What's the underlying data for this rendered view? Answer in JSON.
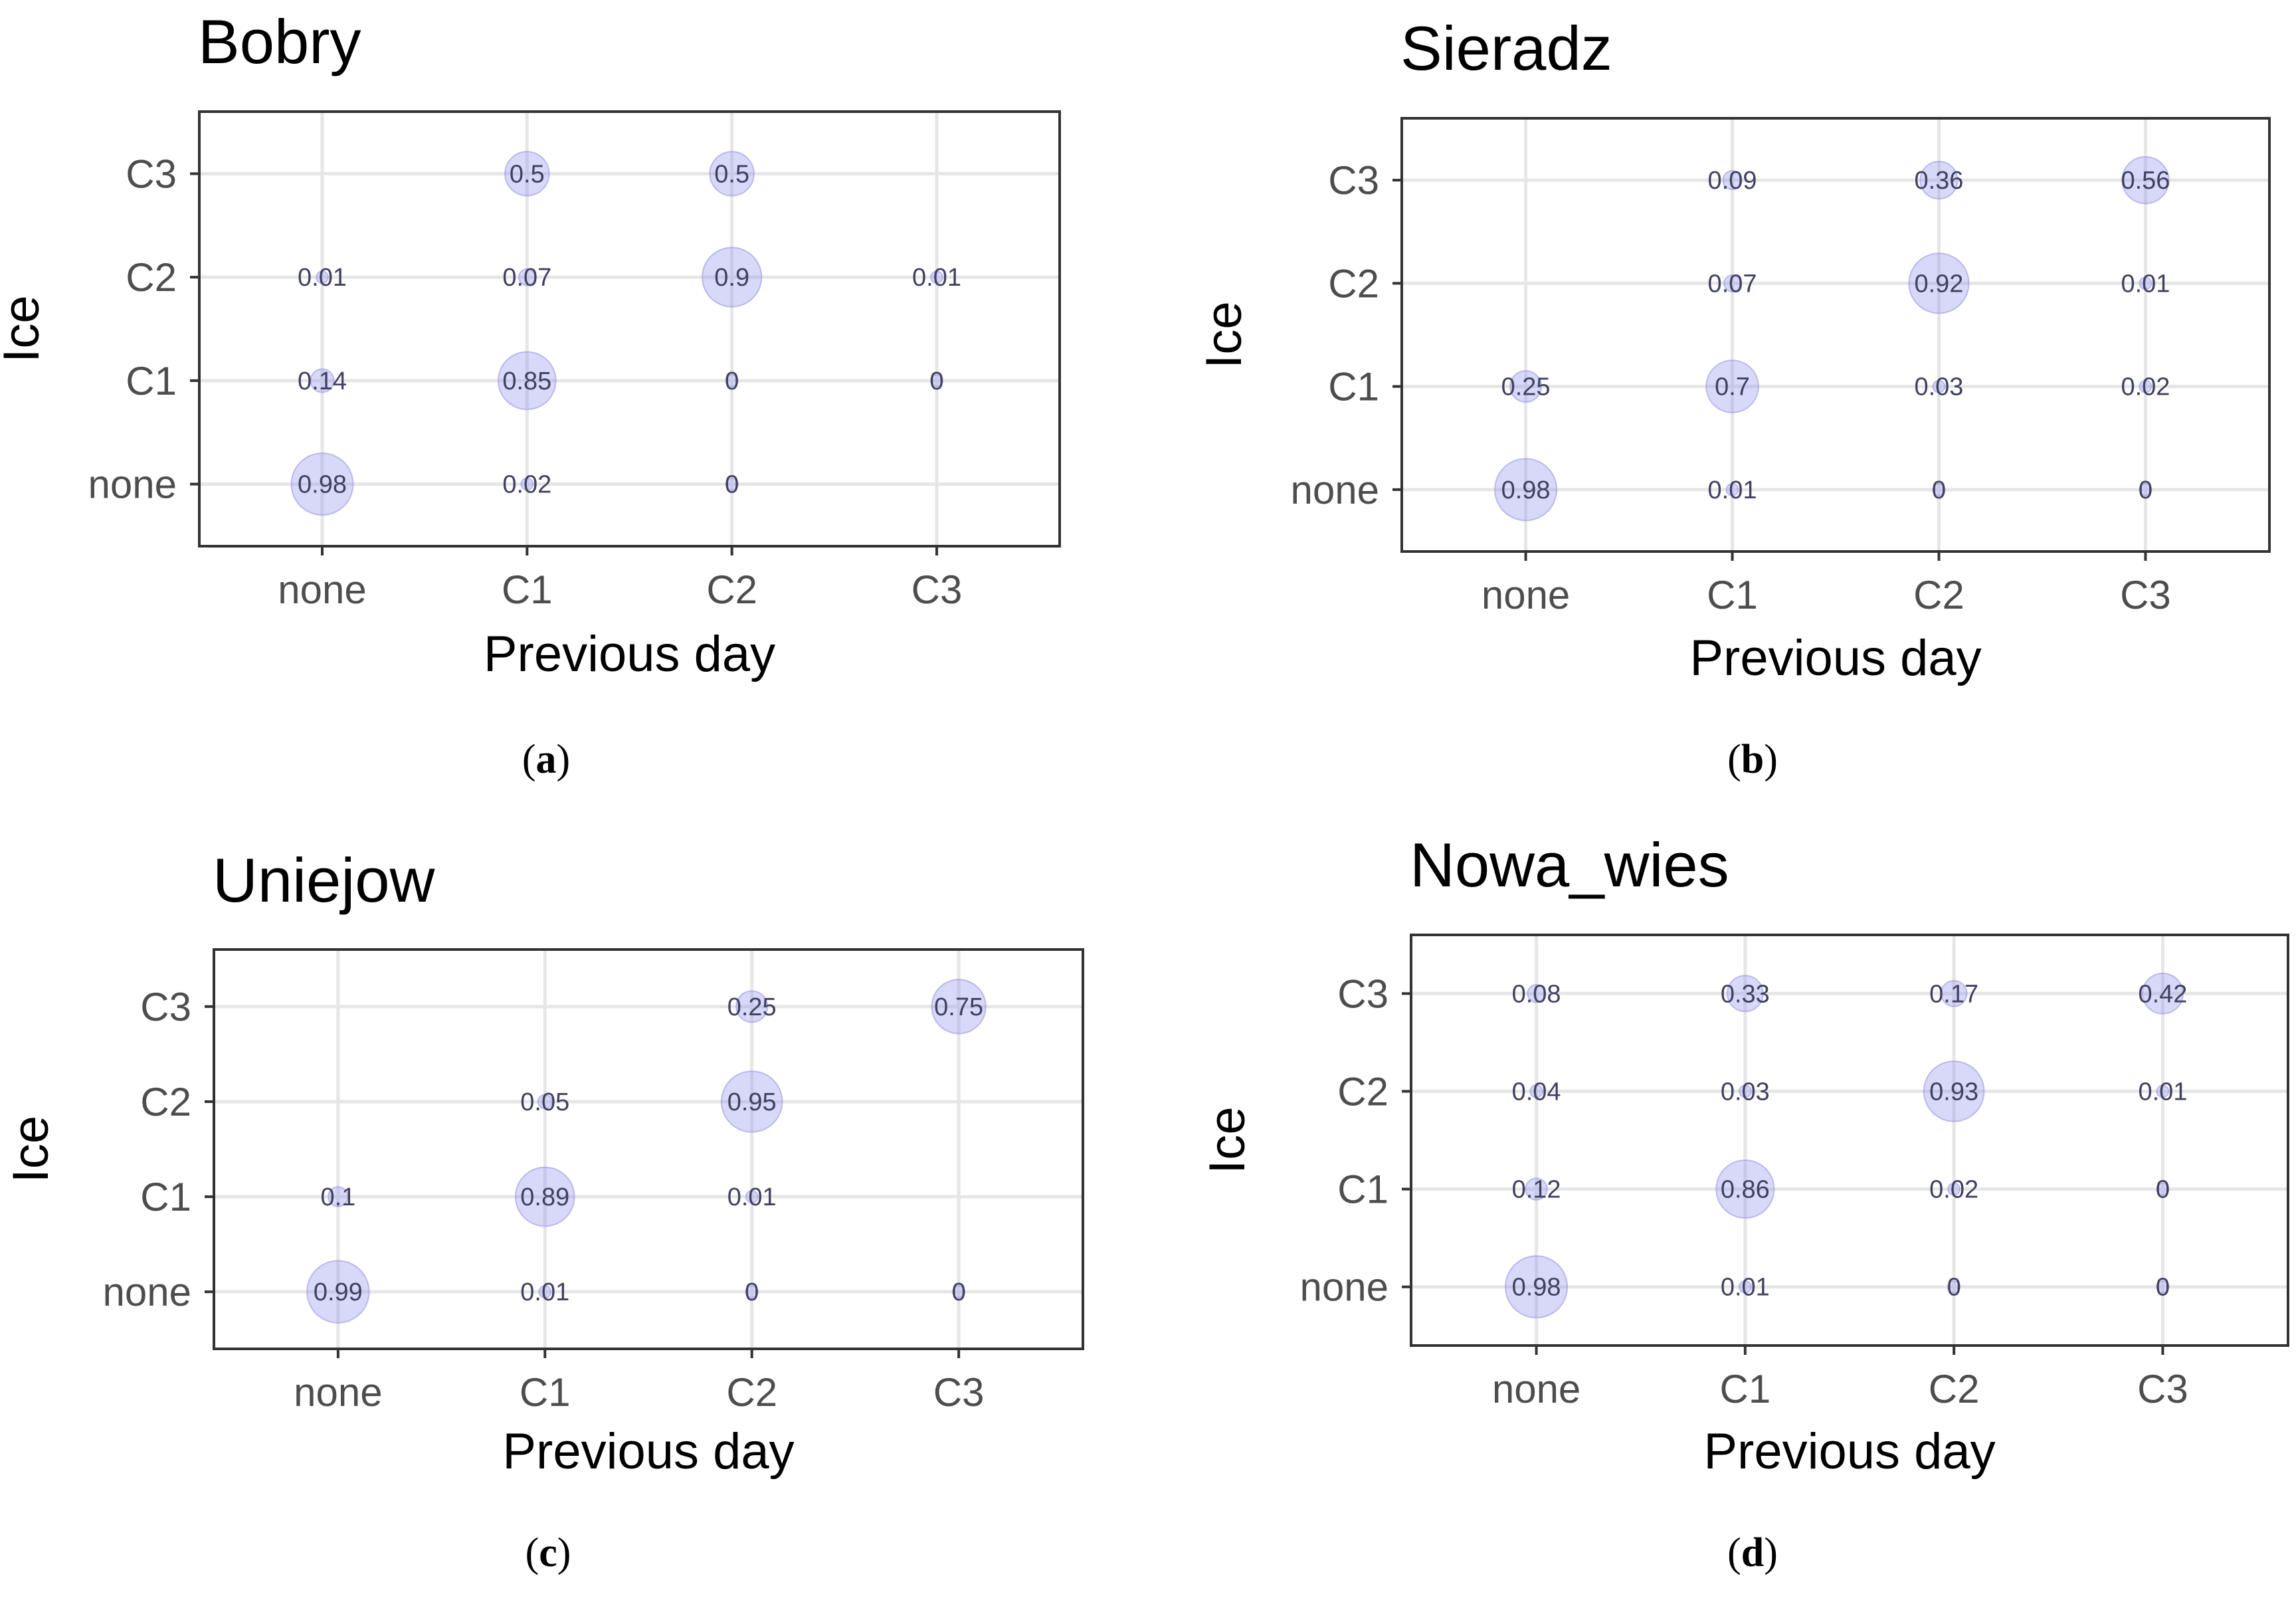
{
  "colors": {
    "bubble": "#9999ee",
    "bubble_opacity": "0.38",
    "bubble_stroke": "#8a8ae0",
    "grid": "#e6e6e6",
    "frame": "#333333",
    "tick_text": "#4d4d4d",
    "label_text": "#000000",
    "value_text": "#404060"
  },
  "chart_data": [
    {
      "type": "scatter",
      "title": "Bobry",
      "caption": "a",
      "xlabel": "Previous day",
      "ylabel": "Ice",
      "categories_x": [
        "none",
        "C1",
        "C2",
        "C3"
      ],
      "categories_y": [
        "none",
        "C1",
        "C2",
        "C3"
      ],
      "points": [
        {
          "x": "C1",
          "y": "C3",
          "value": 0.5,
          "label": "0.5"
        },
        {
          "x": "C2",
          "y": "C3",
          "value": 0.5,
          "label": "0.5"
        },
        {
          "x": "none",
          "y": "C2",
          "value": 0.01,
          "label": "0.01"
        },
        {
          "x": "C1",
          "y": "C2",
          "value": 0.07,
          "label": "0.07"
        },
        {
          "x": "C2",
          "y": "C2",
          "value": 0.9,
          "label": "0.9"
        },
        {
          "x": "C3",
          "y": "C2",
          "value": 0.01,
          "label": "0.01"
        },
        {
          "x": "none",
          "y": "C1",
          "value": 0.14,
          "label": "0.14"
        },
        {
          "x": "C1",
          "y": "C1",
          "value": 0.85,
          "label": "0.85"
        },
        {
          "x": "C2",
          "y": "C1",
          "value": 0,
          "label": "0"
        },
        {
          "x": "C3",
          "y": "C1",
          "value": 0,
          "label": "0"
        },
        {
          "x": "none",
          "y": "none",
          "value": 0.98,
          "label": "0.98"
        },
        {
          "x": "C1",
          "y": "none",
          "value": 0.02,
          "label": "0.02"
        },
        {
          "x": "C2",
          "y": "none",
          "value": 0,
          "label": "0"
        }
      ]
    },
    {
      "type": "scatter",
      "title": "Sieradz",
      "caption": "b",
      "xlabel": "Previous day",
      "ylabel": "Ice",
      "categories_x": [
        "none",
        "C1",
        "C2",
        "C3"
      ],
      "categories_y": [
        "none",
        "C1",
        "C2",
        "C3"
      ],
      "points": [
        {
          "x": "C1",
          "y": "C3",
          "value": 0.09,
          "label": "0.09"
        },
        {
          "x": "C2",
          "y": "C3",
          "value": 0.36,
          "label": "0.36"
        },
        {
          "x": "C3",
          "y": "C3",
          "value": 0.56,
          "label": "0.56"
        },
        {
          "x": "C1",
          "y": "C2",
          "value": 0.07,
          "label": "0.07"
        },
        {
          "x": "C2",
          "y": "C2",
          "value": 0.92,
          "label": "0.92"
        },
        {
          "x": "C3",
          "y": "C2",
          "value": 0.01,
          "label": "0.01"
        },
        {
          "x": "none",
          "y": "C1",
          "value": 0.25,
          "label": "0.25"
        },
        {
          "x": "C1",
          "y": "C1",
          "value": 0.7,
          "label": "0.7"
        },
        {
          "x": "C2",
          "y": "C1",
          "value": 0.03,
          "label": "0.03"
        },
        {
          "x": "C3",
          "y": "C1",
          "value": 0.02,
          "label": "0.02"
        },
        {
          "x": "none",
          "y": "none",
          "value": 0.98,
          "label": "0.98"
        },
        {
          "x": "C1",
          "y": "none",
          "value": 0.01,
          "label": "0.01"
        },
        {
          "x": "C2",
          "y": "none",
          "value": 0,
          "label": "0"
        },
        {
          "x": "C3",
          "y": "none",
          "value": 0,
          "label": "0"
        }
      ]
    },
    {
      "type": "scatter",
      "title": "Uniejow",
      "caption": "c",
      "xlabel": "Previous day",
      "ylabel": "Ice",
      "categories_x": [
        "none",
        "C1",
        "C2",
        "C3"
      ],
      "categories_y": [
        "none",
        "C1",
        "C2",
        "C3"
      ],
      "points": [
        {
          "x": "C2",
          "y": "C3",
          "value": 0.25,
          "label": "0.25"
        },
        {
          "x": "C3",
          "y": "C3",
          "value": 0.75,
          "label": "0.75"
        },
        {
          "x": "C1",
          "y": "C2",
          "value": 0.05,
          "label": "0.05"
        },
        {
          "x": "C2",
          "y": "C2",
          "value": 0.95,
          "label": "0.95"
        },
        {
          "x": "none",
          "y": "C1",
          "value": 0.1,
          "label": "0.1"
        },
        {
          "x": "C1",
          "y": "C1",
          "value": 0.89,
          "label": "0.89"
        },
        {
          "x": "C2",
          "y": "C1",
          "value": 0.01,
          "label": "0.01"
        },
        {
          "x": "none",
          "y": "none",
          "value": 0.99,
          "label": "0.99"
        },
        {
          "x": "C1",
          "y": "none",
          "value": 0.01,
          "label": "0.01"
        },
        {
          "x": "C2",
          "y": "none",
          "value": 0,
          "label": "0"
        },
        {
          "x": "C3",
          "y": "none",
          "value": 0,
          "label": "0"
        }
      ]
    },
    {
      "type": "scatter",
      "title": "Nowa_wies",
      "caption": "d",
      "xlabel": "Previous day",
      "ylabel": "Ice",
      "categories_x": [
        "none",
        "C1",
        "C2",
        "C3"
      ],
      "categories_y": [
        "none",
        "C1",
        "C2",
        "C3"
      ],
      "points": [
        {
          "x": "none",
          "y": "C3",
          "value": 0.08,
          "label": "0.08"
        },
        {
          "x": "C1",
          "y": "C3",
          "value": 0.33,
          "label": "0.33"
        },
        {
          "x": "C2",
          "y": "C3",
          "value": 0.17,
          "label": "0.17"
        },
        {
          "x": "C3",
          "y": "C3",
          "value": 0.42,
          "label": "0.42"
        },
        {
          "x": "none",
          "y": "C2",
          "value": 0.04,
          "label": "0.04"
        },
        {
          "x": "C1",
          "y": "C2",
          "value": 0.03,
          "label": "0.03"
        },
        {
          "x": "C2",
          "y": "C2",
          "value": 0.93,
          "label": "0.93"
        },
        {
          "x": "C3",
          "y": "C2",
          "value": 0.01,
          "label": "0.01"
        },
        {
          "x": "none",
          "y": "C1",
          "value": 0.12,
          "label": "0.12"
        },
        {
          "x": "C1",
          "y": "C1",
          "value": 0.86,
          "label": "0.86"
        },
        {
          "x": "C2",
          "y": "C1",
          "value": 0.02,
          "label": "0.02"
        },
        {
          "x": "C3",
          "y": "C1",
          "value": 0,
          "label": "0"
        },
        {
          "x": "none",
          "y": "none",
          "value": 0.98,
          "label": "0.98"
        },
        {
          "x": "C1",
          "y": "none",
          "value": 0.01,
          "label": "0.01"
        },
        {
          "x": "C2",
          "y": "none",
          "value": 0,
          "label": "0"
        },
        {
          "x": "C3",
          "y": "none",
          "value": 0,
          "label": "0"
        }
      ]
    }
  ]
}
